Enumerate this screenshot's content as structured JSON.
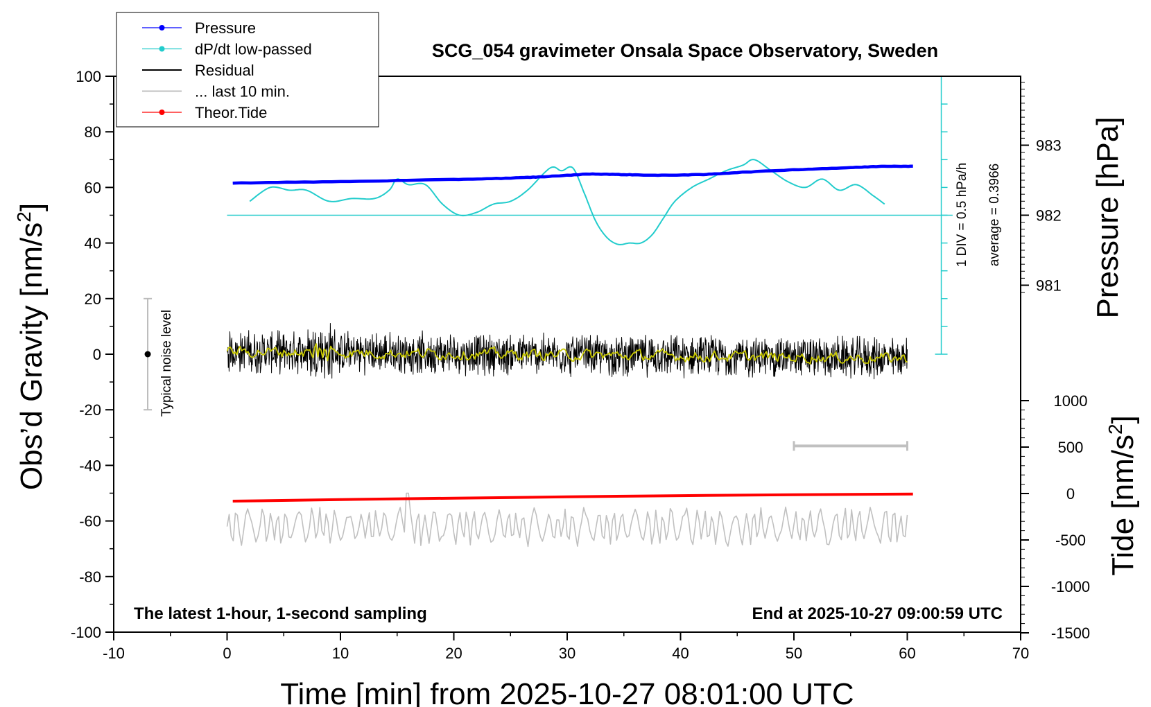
{
  "chart_data": {
    "type": "line",
    "title": "SCG_054 gravimeter Onsala Space Observatory, Sweden",
    "xlabel": "Time [min] from 2025-10-27 08:01:00 UTC",
    "ylabel_main": "Obs’d Gravity [nm/s",
    "ylabel_sup": "2",
    "ylabel_end": "]",
    "pressure_axis_label": "Pressure [hPa]",
    "tide_axis_label_main": "Tide [nm/s",
    "tide_axis_label_sup": "2",
    "tide_axis_label_end": "]",
    "xlim": [
      -10,
      70
    ],
    "ylim": [
      -100,
      100
    ],
    "x_ticks": [
      "-10",
      "0",
      "10",
      "20",
      "30",
      "40",
      "50",
      "60",
      "70"
    ],
    "y_ticks": [
      "-100",
      "-80",
      "-60",
      "-40",
      "-20",
      "0",
      "20",
      "40",
      "60",
      "80",
      "100"
    ],
    "pressure_ticks": [
      "981",
      "982",
      "983"
    ],
    "pressure_tick_values": [
      981,
      982,
      983
    ],
    "tide_ticks": [
      "-1500",
      "-1000",
      "-500",
      "0",
      "500",
      "1000"
    ],
    "tide_tick_values": [
      -1500,
      -1000,
      -500,
      0,
      500,
      1000
    ],
    "legend": {
      "placement": "top-left",
      "entries": [
        {
          "label": "Pressure",
          "color": "#0000ff",
          "marker": true
        },
        {
          "label": "dP/dt low-passed",
          "color": "#22cccc",
          "marker": true
        },
        {
          "label": "Residual",
          "color": "#000000",
          "marker": false
        },
        {
          "label": "... last 10 min.",
          "color": "#c0c0c0",
          "marker": false
        },
        {
          "label": "Theor.Tide",
          "color": "#ff0000",
          "marker": true
        }
      ]
    },
    "footer_left": "The latest 1-hour, 1-second sampling",
    "footer_right": "End at 2025-10-27 09:00:59 UTC",
    "dpdt_scale_label": "1 DIV = 0.5 hPa/h",
    "dpdt_average_label": "average = 0.3966",
    "noise_label": "Typical noise level",
    "noise_level": {
      "x": -7,
      "center": 0,
      "half_range": 20
    },
    "dpdt_scale_bar": {
      "x": 63,
      "y_bottom": 0,
      "y_top": 100,
      "divisions": 10
    },
    "dpdt_baseline_y": 50,
    "last10_bar": {
      "x_start": 50,
      "x_end": 60,
      "y": -33
    },
    "series": [
      {
        "name": "Pressure",
        "axis": "pressure",
        "color": "#0000ff",
        "x": [
          0.5,
          10,
          20,
          25,
          28,
          32,
          35,
          38,
          42,
          45,
          50,
          55,
          58,
          60.5
        ],
        "values": [
          982.46,
          982.48,
          982.51,
          982.53,
          982.55,
          982.59,
          982.58,
          982.57,
          982.58,
          982.61,
          982.65,
          982.68,
          982.7,
          982.7
        ]
      },
      {
        "name": "dP/dt low-passed",
        "axis": "gravity",
        "color": "#22cccc",
        "x": [
          2,
          3.8,
          5.5,
          7,
          9,
          11,
          13,
          14.3,
          15,
          16,
          17.5,
          19,
          20.5,
          22,
          23.5,
          25,
          26.5,
          28.5,
          29.5,
          30.5,
          31.5,
          32.5,
          33.5,
          34.5,
          35.5,
          36.5,
          37.5,
          38.5,
          39.5,
          41,
          42.5,
          44,
          45.5,
          46.5,
          48,
          49.5,
          51,
          52.5,
          54,
          55.5,
          57,
          58
        ],
        "values": [
          55,
          60,
          59,
          59,
          55,
          56,
          56,
          59,
          63,
          61,
          61,
          54,
          50,
          51,
          54,
          55,
          59,
          67,
          66,
          67,
          58,
          48,
          42,
          39.5,
          40,
          40,
          43,
          49,
          55,
          60,
          63,
          66,
          68,
          70,
          66,
          62,
          60,
          63,
          59,
          61,
          57,
          54
        ]
      },
      {
        "name": "Residual",
        "axis": "gravity",
        "color": "#000000",
        "x_start": 0,
        "x_end": 60,
        "amplitude": 6,
        "offset_start": 1,
        "offset_end": -1.5
      },
      {
        "name": "Residual low-passed",
        "axis": "gravity",
        "color": "#c8c800",
        "x_start": 0,
        "x_end": 60,
        "offset_start": 1,
        "offset_end": -1.5
      },
      {
        "name": "... last 10 min.",
        "axis": "gravity",
        "color": "#c0c0c0",
        "x_start": 0,
        "x_end": 60,
        "center": -62,
        "amplitude": 6
      },
      {
        "name": "Theor.Tide",
        "axis": "tide",
        "color": "#ff0000",
        "x": [
          0.5,
          10,
          20,
          30,
          40,
          50,
          60.5
        ],
        "values": [
          -82,
          -65,
          -50,
          -36,
          -23,
          -13,
          -5
        ]
      }
    ]
  }
}
